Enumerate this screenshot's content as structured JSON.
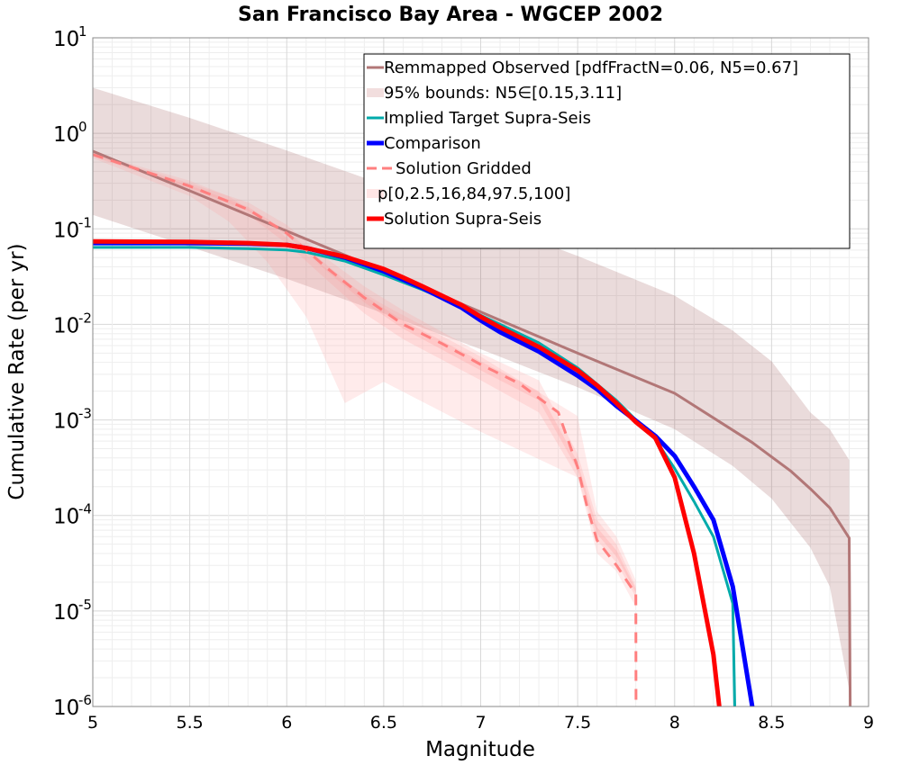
{
  "chart_data": {
    "type": "line",
    "title": "San Francisco Bay Area - WGCEP 2002",
    "xlabel": "Magnitude",
    "ylabel": "Cumulative Rate (per yr)",
    "xlim": [
      5,
      9
    ],
    "ylim": [
      1e-06,
      10
    ],
    "y_scale": "log",
    "grid": true,
    "legend_position": "top-right",
    "x_ticks": [
      "5",
      "5.5",
      "6",
      "6.5",
      "7",
      "7.5",
      "8",
      "8.5",
      "9"
    ],
    "y_ticks": [
      {
        "base": "10",
        "exp": "1"
      },
      {
        "base": "10",
        "exp": "0"
      },
      {
        "base": "10",
        "exp": "-1"
      },
      {
        "base": "10",
        "exp": "-2"
      },
      {
        "base": "10",
        "exp": "-3"
      },
      {
        "base": "10",
        "exp": "-4"
      },
      {
        "base": "10",
        "exp": "-5"
      },
      {
        "base": "10",
        "exp": "-6"
      }
    ],
    "legend": [
      {
        "label": "Remmapped Observed [pdfFractN=0.06, N5=0.67]",
        "style": "line",
        "color": "#b27777",
        "width": 3
      },
      {
        "label": "95% bounds: N5∈[0.15,3.11]",
        "style": "band",
        "color": "#f2dede"
      },
      {
        "label": "Implied Target Supra-Seis",
        "style": "line",
        "color": "#00aaaa",
        "width": 3
      },
      {
        "label": "Comparison",
        "style": "line",
        "color": "#0000ff",
        "width": 5
      },
      {
        "label": "Solution Gridded",
        "style": "dashed",
        "color": "#ff7f7f",
        "width": 3
      },
      {
        "label": "p[0,2.5,16,84,97.5,100]",
        "style": "band",
        "color": "#ffe6e6"
      },
      {
        "label": "Solution Supra-Seis",
        "style": "line",
        "color": "#ff0000",
        "width": 5
      }
    ],
    "bands": [
      {
        "name": "95% bounds: N5∈[0.15,3.11]",
        "color": "#8b3a3a",
        "opacity": 0.18,
        "x": [
          5.0,
          5.5,
          6.0,
          6.5,
          7.0,
          7.5,
          8.0,
          8.3,
          8.5,
          8.7,
          8.8,
          8.9
        ],
        "lower": [
          0.14,
          0.065,
          0.03,
          0.013,
          0.0055,
          0.0022,
          0.0008,
          0.00033,
          0.00015,
          4.6e-05,
          1.8e-05,
          1.5e-06
        ],
        "upper": [
          3.0,
          1.45,
          0.66,
          0.29,
          0.125,
          0.052,
          0.02,
          0.0086,
          0.0041,
          0.0012,
          0.0008,
          0.00038
        ]
      },
      {
        "name": "p 0-100",
        "color": "#ff9999",
        "opacity": 0.2,
        "x": [
          5.0,
          5.5,
          5.7,
          5.9,
          6.1,
          6.3,
          6.5,
          7.0,
          7.5,
          7.6,
          7.7,
          7.8
        ],
        "lower": [
          0.55,
          0.22,
          0.12,
          0.045,
          0.012,
          0.0015,
          0.0025,
          0.00075,
          0.00025,
          4e-05,
          2.6e-05,
          1.1e-05
        ],
        "upper": [
          0.62,
          0.32,
          0.22,
          0.12,
          0.054,
          0.028,
          0.016,
          0.0046,
          0.0011,
          0.00011,
          6e-05,
          2.1e-05
        ]
      },
      {
        "name": "p 2.5-97.5",
        "color": "#ff9999",
        "opacity": 0.22,
        "x": [
          5.0,
          5.5,
          5.8,
          6.0,
          6.2,
          6.4,
          6.6,
          7.0,
          7.3,
          7.5,
          7.6,
          7.7,
          7.8
        ],
        "lower": [
          0.57,
          0.26,
          0.14,
          0.07,
          0.03,
          0.013,
          0.007,
          0.0026,
          0.0012,
          0.00025,
          5.5e-05,
          3.2e-05,
          1.4e-05
        ],
        "upper": [
          0.61,
          0.3,
          0.19,
          0.11,
          0.05,
          0.025,
          0.014,
          0.005,
          0.0026,
          0.00044,
          9e-05,
          5e-05,
          1.8e-05
        ]
      },
      {
        "name": "p 16-84",
        "color": "#ff9999",
        "opacity": 0.25,
        "x": [
          5.0,
          5.5,
          5.8,
          6.0,
          6.2,
          6.4,
          6.6,
          7.0,
          7.3,
          7.5,
          7.6,
          7.7,
          7.8
        ],
        "lower": [
          0.585,
          0.27,
          0.155,
          0.085,
          0.037,
          0.017,
          0.009,
          0.0033,
          0.0016,
          0.0003,
          6.4e-05,
          3.7e-05,
          1.55e-05
        ],
        "upper": [
          0.6,
          0.285,
          0.17,
          0.095,
          0.043,
          0.02,
          0.011,
          0.0041,
          0.002,
          0.00036,
          7.5e-05,
          4.3e-05,
          1.7e-05
        ]
      }
    ],
    "series": [
      {
        "name": "Remmapped Observed [pdfFractN=0.06, N5=0.67]",
        "color": "#b27777",
        "width": 3,
        "dash": "",
        "x": [
          5.0,
          5.5,
          6.0,
          6.5,
          7.0,
          7.5,
          8.0,
          8.2,
          8.4,
          8.6,
          8.7,
          8.8,
          8.9,
          8.905
        ],
        "y": [
          0.65,
          0.25,
          0.095,
          0.036,
          0.0135,
          0.005,
          0.0019,
          0.00105,
          0.00058,
          0.00029,
          0.00019,
          0.00012,
          5.8e-05,
          1e-06
        ]
      },
      {
        "name": "Implied Target Supra-Seis",
        "color": "#00aaaa",
        "width": 3,
        "dash": "",
        "x": [
          5.0,
          5.5,
          5.8,
          6.0,
          6.1,
          6.3,
          6.5,
          6.7,
          6.9,
          7.1,
          7.3,
          7.5,
          7.7,
          7.8,
          7.9,
          8.0,
          8.1,
          8.2,
          8.3,
          8.31
        ],
        "y": [
          0.064,
          0.064,
          0.062,
          0.06,
          0.057,
          0.046,
          0.033,
          0.023,
          0.0155,
          0.01,
          0.0064,
          0.0035,
          0.0016,
          0.001,
          0.00063,
          0.00031,
          0.00014,
          6e-05,
          1.2e-05,
          1e-06
        ]
      },
      {
        "name": "Comparison",
        "color": "#0000ff",
        "width": 5,
        "dash": "",
        "x": [
          5.0,
          5.5,
          5.8,
          6.0,
          6.1,
          6.3,
          6.5,
          6.7,
          6.9,
          7.0,
          7.1,
          7.3,
          7.5,
          7.6,
          7.7,
          7.8,
          7.9,
          8.0,
          8.1,
          8.2,
          8.3,
          8.4
        ],
        "y": [
          0.071,
          0.071,
          0.07,
          0.068,
          0.063,
          0.05,
          0.036,
          0.024,
          0.015,
          0.011,
          0.0083,
          0.0052,
          0.0029,
          0.0021,
          0.0014,
          0.00098,
          0.00068,
          0.00042,
          0.0002,
          9e-05,
          1.8e-05,
          1e-06
        ]
      },
      {
        "name": "Solution Gridded",
        "color": "#ff7f7f",
        "width": 3,
        "dash": "12,9",
        "x": [
          5.0,
          5.5,
          5.8,
          6.0,
          6.2,
          6.4,
          6.6,
          6.8,
          7.0,
          7.2,
          7.4,
          7.5,
          7.55,
          7.6,
          7.7,
          7.8,
          7.801
        ],
        "y": [
          0.6,
          0.28,
          0.16,
          0.09,
          0.04,
          0.019,
          0.01,
          0.0063,
          0.0038,
          0.0024,
          0.0012,
          0.00032,
          0.00012,
          5.5e-05,
          3e-05,
          1.5e-05,
          1e-06
        ]
      },
      {
        "name": "Solution Supra-Seis",
        "color": "#ff0000",
        "width": 5,
        "dash": "",
        "x": [
          5.0,
          5.5,
          5.8,
          6.0,
          6.1,
          6.3,
          6.5,
          6.6,
          6.7,
          6.9,
          7.0,
          7.1,
          7.3,
          7.5,
          7.6,
          7.7,
          7.8,
          7.9,
          8.0,
          8.1,
          8.2,
          8.23
        ],
        "y": [
          0.074,
          0.073,
          0.071,
          0.068,
          0.063,
          0.051,
          0.038,
          0.031,
          0.025,
          0.016,
          0.012,
          0.0093,
          0.0058,
          0.0033,
          0.0023,
          0.0015,
          0.00095,
          0.00065,
          0.00025,
          4e-05,
          3.5e-06,
          1e-06
        ]
      }
    ]
  }
}
